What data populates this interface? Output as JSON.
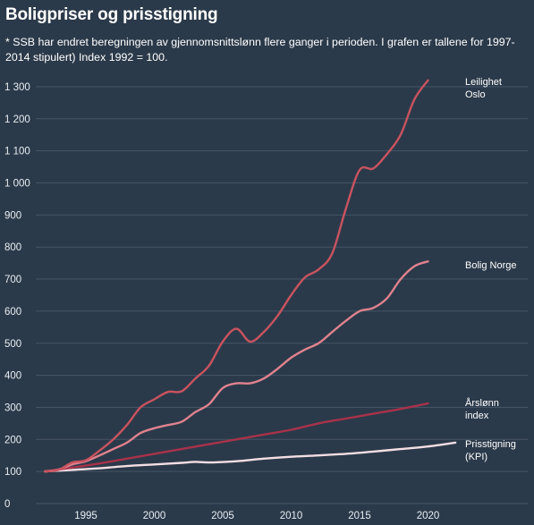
{
  "title": "Boligpriser og prisstigning",
  "subtitle": "* SSB har endret beregningen av gjennomsnittslønn flere ganger i perioden. I grafen er tallene for 1997-2014 stipulert) Index 1992 = 100.",
  "chart_data": {
    "type": "line",
    "title": "Boligpriser og prisstigning",
    "xlabel": "",
    "ylabel": "",
    "xlim": [
      1991,
      2023
    ],
    "ylim": [
      0,
      1350
    ],
    "x_ticks": [
      {
        "value": 1995,
        "label": "1995"
      },
      {
        "value": 2000,
        "label": "2000"
      },
      {
        "value": 2005,
        "label": "2005"
      },
      {
        "value": 2010,
        "label": "2010"
      },
      {
        "value": 2015,
        "label": "2015"
      },
      {
        "value": 2020,
        "label": "2020"
      }
    ],
    "y_ticks": [
      {
        "value": 0,
        "label": "0"
      },
      {
        "value": 100,
        "label": "100"
      },
      {
        "value": 200,
        "label": "200"
      },
      {
        "value": 300,
        "label": "300"
      },
      {
        "value": 400,
        "label": "400"
      },
      {
        "value": 500,
        "label": "500"
      },
      {
        "value": 600,
        "label": "600"
      },
      {
        "value": 700,
        "label": "700"
      },
      {
        "value": 800,
        "label": "800"
      },
      {
        "value": 900,
        "label": "900"
      },
      {
        "value": 1000,
        "label": "1 000"
      },
      {
        "value": 1100,
        "label": "1 100"
      },
      {
        "value": 1200,
        "label": "1 200"
      },
      {
        "value": 1300,
        "label": "1 300"
      }
    ],
    "grid": true,
    "legend": "none (direct labels at line ends)",
    "series": [
      {
        "name": "Leilighet Oslo",
        "label_lines": [
          "Leilighet",
          "Oslo"
        ],
        "color": "#c9535f",
        "points": [
          [
            1992,
            100
          ],
          [
            1993,
            105
          ],
          [
            1994,
            128
          ],
          [
            1995,
            135
          ],
          [
            1996,
            165
          ],
          [
            1997,
            200
          ],
          [
            1998,
            245
          ],
          [
            1999,
            300
          ],
          [
            2000,
            325
          ],
          [
            2001,
            348
          ],
          [
            2002,
            350
          ],
          [
            2003,
            390
          ],
          [
            2004,
            430
          ],
          [
            2005,
            505
          ],
          [
            2006,
            545
          ],
          [
            2007,
            505
          ],
          [
            2008,
            535
          ],
          [
            2009,
            585
          ],
          [
            2010,
            650
          ],
          [
            2011,
            705
          ],
          [
            2012,
            730
          ],
          [
            2013,
            780
          ],
          [
            2014,
            920
          ],
          [
            2015,
            1040
          ],
          [
            2016,
            1045
          ],
          [
            2017,
            1090
          ],
          [
            2018,
            1150
          ],
          [
            2019,
            1260
          ],
          [
            2020,
            1320
          ]
        ]
      },
      {
        "name": "Bolig Norge",
        "label_lines": [
          "Bolig Norge"
        ],
        "color": "#e0828e",
        "points": [
          [
            1992,
            100
          ],
          [
            1993,
            106
          ],
          [
            1994,
            122
          ],
          [
            1995,
            132
          ],
          [
            1996,
            150
          ],
          [
            1997,
            170
          ],
          [
            1998,
            190
          ],
          [
            1999,
            220
          ],
          [
            2000,
            235
          ],
          [
            2001,
            245
          ],
          [
            2002,
            255
          ],
          [
            2003,
            285
          ],
          [
            2004,
            310
          ],
          [
            2005,
            360
          ],
          [
            2006,
            375
          ],
          [
            2007,
            375
          ],
          [
            2008,
            390
          ],
          [
            2009,
            420
          ],
          [
            2010,
            455
          ],
          [
            2011,
            480
          ],
          [
            2012,
            500
          ],
          [
            2013,
            535
          ],
          [
            2014,
            570
          ],
          [
            2015,
            600
          ],
          [
            2016,
            610
          ],
          [
            2017,
            640
          ],
          [
            2018,
            700
          ],
          [
            2019,
            740
          ],
          [
            2020,
            755
          ]
        ]
      },
      {
        "name": "Årslønn index",
        "label_lines": [
          "Årslønn",
          "index"
        ],
        "color": "#a8324a",
        "points": [
          [
            1992,
            100
          ],
          [
            1994,
            112
          ],
          [
            1996,
            125
          ],
          [
            1998,
            140
          ],
          [
            2000,
            155
          ],
          [
            2002,
            170
          ],
          [
            2004,
            185
          ],
          [
            2006,
            200
          ],
          [
            2008,
            215
          ],
          [
            2010,
            230
          ],
          [
            2012,
            250
          ],
          [
            2014,
            265
          ],
          [
            2016,
            280
          ],
          [
            2018,
            295
          ],
          [
            2020,
            312
          ]
        ]
      },
      {
        "name": "Prisstigning (KPI)",
        "label_lines": [
          "Prisstigning",
          "(KPI)"
        ],
        "color": "#f4dfe4",
        "points": [
          [
            1992,
            100
          ],
          [
            1994,
            105
          ],
          [
            1996,
            110
          ],
          [
            1998,
            117
          ],
          [
            2000,
            122
          ],
          [
            2002,
            127
          ],
          [
            2003,
            130
          ],
          [
            2004,
            128
          ],
          [
            2006,
            132
          ],
          [
            2008,
            140
          ],
          [
            2010,
            146
          ],
          [
            2012,
            150
          ],
          [
            2014,
            155
          ],
          [
            2016,
            162
          ],
          [
            2018,
            170
          ],
          [
            2020,
            178
          ],
          [
            2022,
            190
          ]
        ]
      }
    ]
  }
}
